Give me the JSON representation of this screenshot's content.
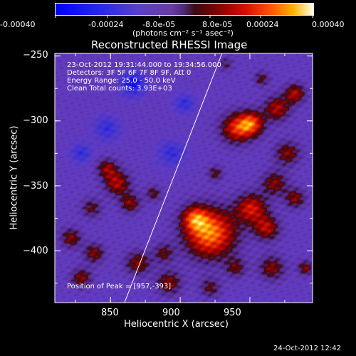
{
  "colorbar": {
    "tick_labels": [
      "-0.00040",
      "-0.00024",
      "-8.0e-05",
      "8.0e-05",
      "0.00024",
      "0.00040"
    ],
    "unit_label": "(photons cm⁻² s⁻¹ asec⁻²)",
    "range": [
      -0.0004,
      0.0004
    ]
  },
  "chart_data": {
    "type": "heatmap",
    "title": "Reconstructed RHESSI Image",
    "xlabel": "Heliocentric X (arcsec)",
    "ylabel": "Heliocentric Y (arcsec)",
    "xlim": [
      810,
      995
    ],
    "ylim": [
      -440,
      -248
    ],
    "x_ticks": [
      850,
      900,
      950
    ],
    "y_ticks": [
      -250,
      -300,
      -350,
      -400
    ],
    "x_tick_labels": [
      "850",
      "900",
      "950"
    ],
    "y_tick_labels": [
      "−250",
      "−300",
      "−350",
      "−400"
    ],
    "limb_line": {
      "x": [
        860,
        930
      ],
      "y": [
        -440,
        -248
      ]
    },
    "peak": {
      "x": 957,
      "y": -393
    }
  },
  "overlay_lines": [
    "23-Oct-2012 19:31:44.000 to 19:34:56.000",
    "Detectors: 3F 5F 6F 7F 8F 9F, Att 0",
    "Energy Range: 25.0 - 50.0 keV",
    "Clean     Total counts: 3.93E+03"
  ],
  "peak_label": "Position of Peak = [957,-393]",
  "footer_date": "24-Oct-2012 12:42"
}
